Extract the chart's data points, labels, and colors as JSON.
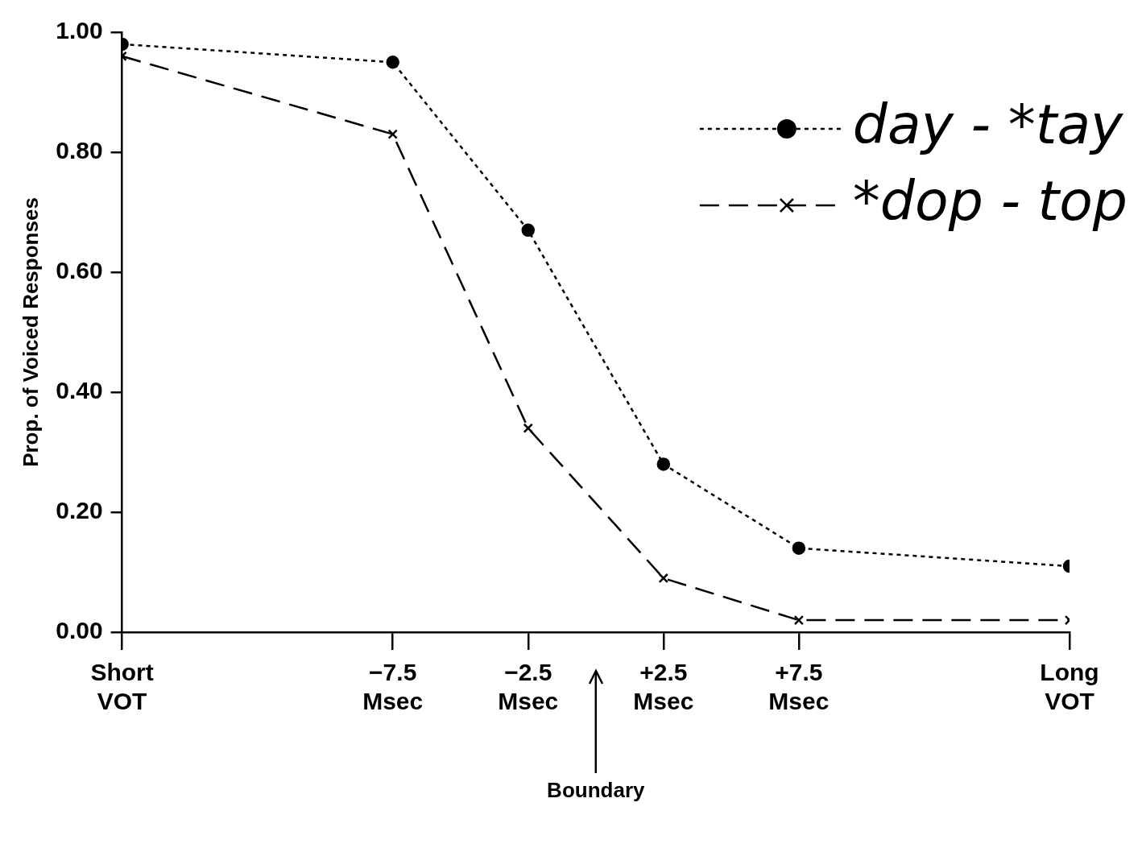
{
  "chart_data": {
    "type": "line",
    "ylabel": "Prop. of Voiced Responses",
    "x": [
      -17.5,
      -7.5,
      -2.5,
      2.5,
      7.5,
      17.5
    ],
    "xlim": [
      -17.5,
      17.5
    ],
    "xticks": [
      {
        "value": -17.5,
        "label": "Short VOT"
      },
      {
        "value": -7.5,
        "label": "−7.5 Msec"
      },
      {
        "value": -2.5,
        "label": "−2.5 Msec"
      },
      {
        "value": 2.5,
        "label": "+2.5 Msec"
      },
      {
        "value": 7.5,
        "label": "+7.5 Msec"
      },
      {
        "value": 17.5,
        "label": "Long VOT"
      }
    ],
    "ylim": [
      0,
      1
    ],
    "yticks": [
      {
        "value": 0,
        "label": "0.00"
      },
      {
        "value": 0.2,
        "label": "0.20"
      },
      {
        "value": 0.4,
        "label": "0.40"
      },
      {
        "value": 0.6,
        "label": "0.60"
      },
      {
        "value": 0.8,
        "label": "0.80"
      },
      {
        "value": 1,
        "label": "1.00"
      }
    ],
    "series": [
      {
        "name": "day - *tay",
        "color": "#000000",
        "marker": "circle",
        "line_style": "dotted",
        "values": [
          0.98,
          0.95,
          0.67,
          0.28,
          0.14,
          0.11
        ]
      },
      {
        "name": "*dop - top",
        "color": "#000000",
        "marker": "cross",
        "line_style": "dashed",
        "values": [
          0.96,
          0.83,
          0.34,
          0.09,
          0.02,
          0.02
        ]
      }
    ],
    "ref_lines": [
      {
        "axis": "x",
        "value": 0,
        "label": "Boundary"
      }
    ],
    "grid": false,
    "legend": "top right"
  }
}
